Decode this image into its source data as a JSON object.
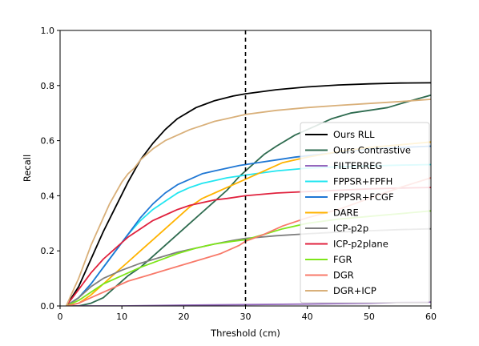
{
  "chart_data": {
    "type": "line",
    "title": "",
    "xlabel": "Threshold (cm)",
    "ylabel": "Recall",
    "xlim": [
      0,
      60
    ],
    "ylim": [
      0.0,
      1.0
    ],
    "xticks": [
      "0",
      "10",
      "20",
      "30",
      "40",
      "50",
      "60"
    ],
    "yticks": [
      "0.0",
      "0.2",
      "0.4",
      "0.6",
      "0.8",
      "1.0"
    ],
    "grid": false,
    "legend_position": "lower-right",
    "vline": {
      "x": 30,
      "style": "dashed",
      "color": "#000000"
    },
    "series": [
      {
        "name": "Ours RLL",
        "color": "#000000",
        "x": [
          1,
          3,
          5,
          7,
          9,
          11,
          13,
          15,
          17,
          19,
          22,
          25,
          28,
          30,
          35,
          40,
          45,
          50,
          55,
          60
        ],
        "y": [
          0.0,
          0.07,
          0.17,
          0.27,
          0.36,
          0.45,
          0.53,
          0.59,
          0.64,
          0.68,
          0.72,
          0.745,
          0.762,
          0.77,
          0.785,
          0.795,
          0.802,
          0.806,
          0.809,
          0.81
        ]
      },
      {
        "name": "Ours Contrastive",
        "color": "#2e6b4f",
        "x": [
          1,
          3,
          5,
          7,
          9,
          11,
          13,
          15,
          17,
          19,
          21,
          23,
          25,
          27,
          29,
          31,
          33,
          35,
          38,
          41,
          44,
          47,
          50,
          53,
          56,
          60
        ],
        "y": [
          0.0,
          0.0,
          0.01,
          0.03,
          0.07,
          0.11,
          0.14,
          0.18,
          0.22,
          0.26,
          0.3,
          0.34,
          0.38,
          0.42,
          0.47,
          0.51,
          0.55,
          0.58,
          0.62,
          0.65,
          0.68,
          0.7,
          0.71,
          0.72,
          0.74,
          0.765
        ]
      },
      {
        "name": "FILTERREG",
        "color": "#9467bd",
        "x": [
          1,
          10,
          20,
          30,
          40,
          50,
          55,
          60
        ],
        "y": [
          0.0,
          0.0,
          0.003,
          0.005,
          0.007,
          0.01,
          0.013,
          0.014
        ]
      },
      {
        "name": "FPPSR+FPFH",
        "color": "#22e6f0",
        "x": [
          1,
          3,
          5,
          7,
          9,
          11,
          13,
          15,
          17,
          19,
          21,
          23,
          25,
          27,
          30,
          35,
          40,
          45,
          50,
          55,
          60
        ],
        "y": [
          0.0,
          0.03,
          0.08,
          0.14,
          0.2,
          0.26,
          0.31,
          0.35,
          0.38,
          0.41,
          0.43,
          0.445,
          0.455,
          0.465,
          0.475,
          0.49,
          0.5,
          0.505,
          0.508,
          0.511,
          0.513
        ]
      },
      {
        "name": "FPPSR+FCGF",
        "color": "#1f77d4",
        "x": [
          1,
          3,
          5,
          7,
          9,
          11,
          13,
          15,
          17,
          19,
          21,
          23,
          25,
          27,
          29,
          32,
          35,
          38,
          42,
          46,
          50,
          55,
          60
        ],
        "y": [
          0.0,
          0.03,
          0.08,
          0.14,
          0.2,
          0.26,
          0.32,
          0.37,
          0.41,
          0.44,
          0.46,
          0.48,
          0.49,
          0.5,
          0.51,
          0.52,
          0.53,
          0.54,
          0.55,
          0.56,
          0.57,
          0.575,
          0.58
        ]
      },
      {
        "name": "DARE",
        "color": "#ffb300",
        "x": [
          1,
          3,
          5,
          7,
          9,
          11,
          13,
          15,
          17,
          19,
          21,
          23,
          25,
          27,
          30,
          33,
          36,
          40,
          45,
          50,
          55,
          60
        ],
        "y": [
          0.0,
          0.01,
          0.04,
          0.08,
          0.12,
          0.16,
          0.2,
          0.24,
          0.28,
          0.32,
          0.36,
          0.39,
          0.41,
          0.43,
          0.46,
          0.49,
          0.52,
          0.54,
          0.56,
          0.575,
          0.585,
          0.595
        ]
      },
      {
        "name": "ICP-p2p",
        "color": "#7f7f7f",
        "x": [
          1,
          3,
          5,
          7,
          10,
          13,
          16,
          19,
          22,
          25,
          28,
          30,
          35,
          40,
          45,
          50,
          55,
          60
        ],
        "y": [
          0.0,
          0.03,
          0.07,
          0.1,
          0.13,
          0.155,
          0.175,
          0.195,
          0.21,
          0.225,
          0.238,
          0.245,
          0.255,
          0.262,
          0.268,
          0.273,
          0.277,
          0.28
        ]
      },
      {
        "name": "ICP-p2plane",
        "color": "#e0223e",
        "x": [
          1,
          3,
          5,
          7,
          9,
          11,
          13,
          15,
          17,
          19,
          21,
          23,
          25,
          27,
          30,
          35,
          40,
          45,
          50,
          55,
          60
        ],
        "y": [
          0.0,
          0.06,
          0.12,
          0.17,
          0.21,
          0.25,
          0.28,
          0.31,
          0.33,
          0.35,
          0.365,
          0.375,
          0.385,
          0.39,
          0.4,
          0.41,
          0.415,
          0.42,
          0.425,
          0.428,
          0.43
        ]
      },
      {
        "name": "FGR",
        "color": "#7ee61a",
        "x": [
          1,
          3,
          5,
          7,
          10,
          13,
          16,
          19,
          22,
          25,
          28,
          30,
          33,
          36,
          40,
          45,
          50,
          55,
          60
        ],
        "y": [
          0.0,
          0.02,
          0.05,
          0.08,
          0.11,
          0.14,
          0.165,
          0.19,
          0.21,
          0.225,
          0.235,
          0.24,
          0.26,
          0.28,
          0.3,
          0.315,
          0.325,
          0.335,
          0.345
        ]
      },
      {
        "name": "DGR",
        "color": "#f87a6a",
        "x": [
          1,
          3,
          5,
          8,
          11,
          14,
          17,
          20,
          23,
          26,
          29,
          30,
          33,
          36,
          40,
          45,
          50,
          55,
          60
        ],
        "y": [
          0.0,
          0.01,
          0.03,
          0.06,
          0.09,
          0.11,
          0.13,
          0.15,
          0.17,
          0.19,
          0.22,
          0.235,
          0.26,
          0.29,
          0.32,
          0.35,
          0.39,
          0.43,
          0.465
        ]
      },
      {
        "name": "DGR+ICP",
        "color": "#d9b07a",
        "x": [
          1,
          2,
          3,
          4,
          5,
          6,
          7,
          8,
          9,
          10,
          11,
          12,
          13,
          14,
          15,
          17,
          19,
          21,
          23,
          25,
          27,
          30,
          35,
          40,
          45,
          50,
          55,
          60
        ],
        "y": [
          0.0,
          0.05,
          0.1,
          0.16,
          0.22,
          0.27,
          0.32,
          0.37,
          0.41,
          0.45,
          0.48,
          0.5,
          0.53,
          0.55,
          0.57,
          0.6,
          0.62,
          0.64,
          0.655,
          0.67,
          0.68,
          0.695,
          0.71,
          0.72,
          0.728,
          0.735,
          0.742,
          0.75
        ]
      }
    ]
  }
}
